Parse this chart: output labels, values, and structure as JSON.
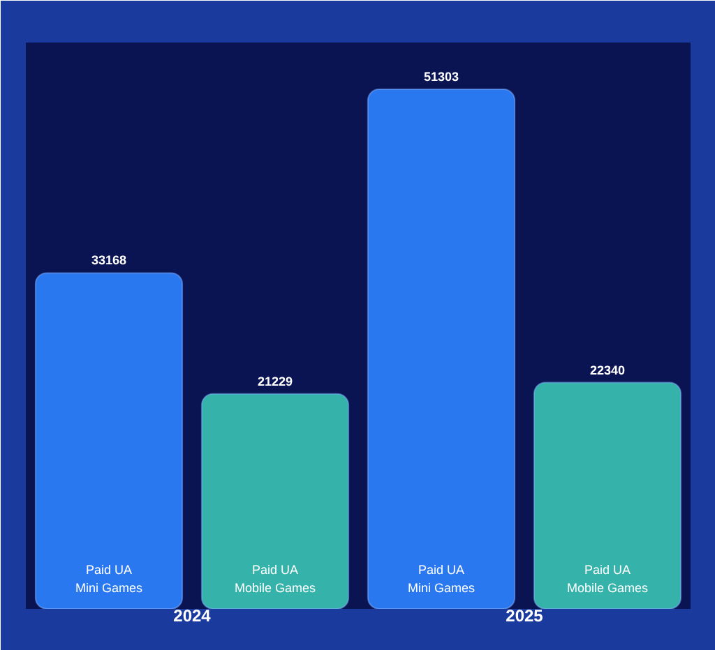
{
  "chart_data": {
    "type": "bar",
    "categories": [
      "2024",
      "2025"
    ],
    "series": [
      {
        "name": "Paid UA\nMini Games",
        "color": "#2a78f0",
        "values": [
          33168,
          51303
        ]
      },
      {
        "name": "Paid UA\nMobile Games",
        "color": "#35b3aa",
        "values": [
          21229,
          22340
        ]
      }
    ],
    "data_labels": true
  }
}
